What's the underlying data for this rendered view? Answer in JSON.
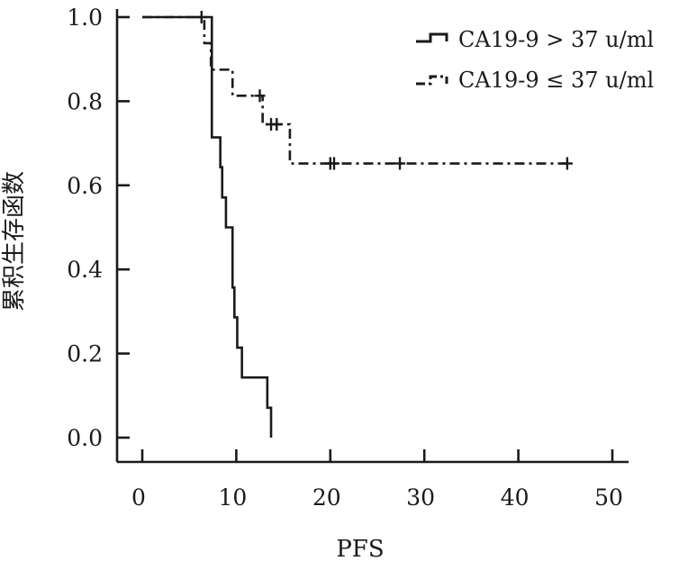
{
  "chart_data": {
    "type": "line",
    "title": "",
    "xlabel": "PFS",
    "ylabel": "累积生存函数",
    "xlim": [
      0,
      50
    ],
    "ylim": [
      0,
      1.0
    ],
    "x_ticks": [
      "0",
      "10",
      "20",
      "30",
      "40",
      "50"
    ],
    "y_ticks": [
      "0.0",
      "0.2",
      "0.4",
      "0.6",
      "0.8",
      "1.0"
    ],
    "grid": false,
    "legend_position": "top-right",
    "series": [
      {
        "name": "CA19-9 > 37 u/ml",
        "line_style": "solid",
        "color": "#1a1a1a",
        "steps": [
          [
            0,
            1.0
          ],
          [
            7.4,
            0.714
          ],
          [
            8.3,
            0.643
          ],
          [
            8.5,
            0.571
          ],
          [
            8.9,
            0.5
          ],
          [
            9.6,
            0.357
          ],
          [
            9.8,
            0.286
          ],
          [
            10.1,
            0.214
          ],
          [
            10.6,
            0.143
          ],
          [
            13.3,
            0.071
          ],
          [
            13.7,
            0.0
          ]
        ],
        "censored": []
      },
      {
        "name": "CA19-9 ≤ 37 u/ml",
        "line_style": "dash-dot",
        "color": "#1a1a1a",
        "steps": [
          [
            0,
            1.0
          ],
          [
            6.6,
            0.938
          ],
          [
            7.3,
            0.875
          ],
          [
            9.6,
            0.813
          ],
          [
            12.8,
            0.745
          ],
          [
            15.7,
            0.652
          ],
          [
            45.2,
            0.652
          ]
        ],
        "censored": [
          [
            6.3,
            1.0
          ],
          [
            12.5,
            0.813
          ],
          [
            13.7,
            0.745
          ],
          [
            14.3,
            0.745
          ],
          [
            20.0,
            0.652
          ],
          [
            20.4,
            0.652
          ],
          [
            27.4,
            0.652
          ],
          [
            45.2,
            0.652
          ]
        ]
      }
    ]
  }
}
